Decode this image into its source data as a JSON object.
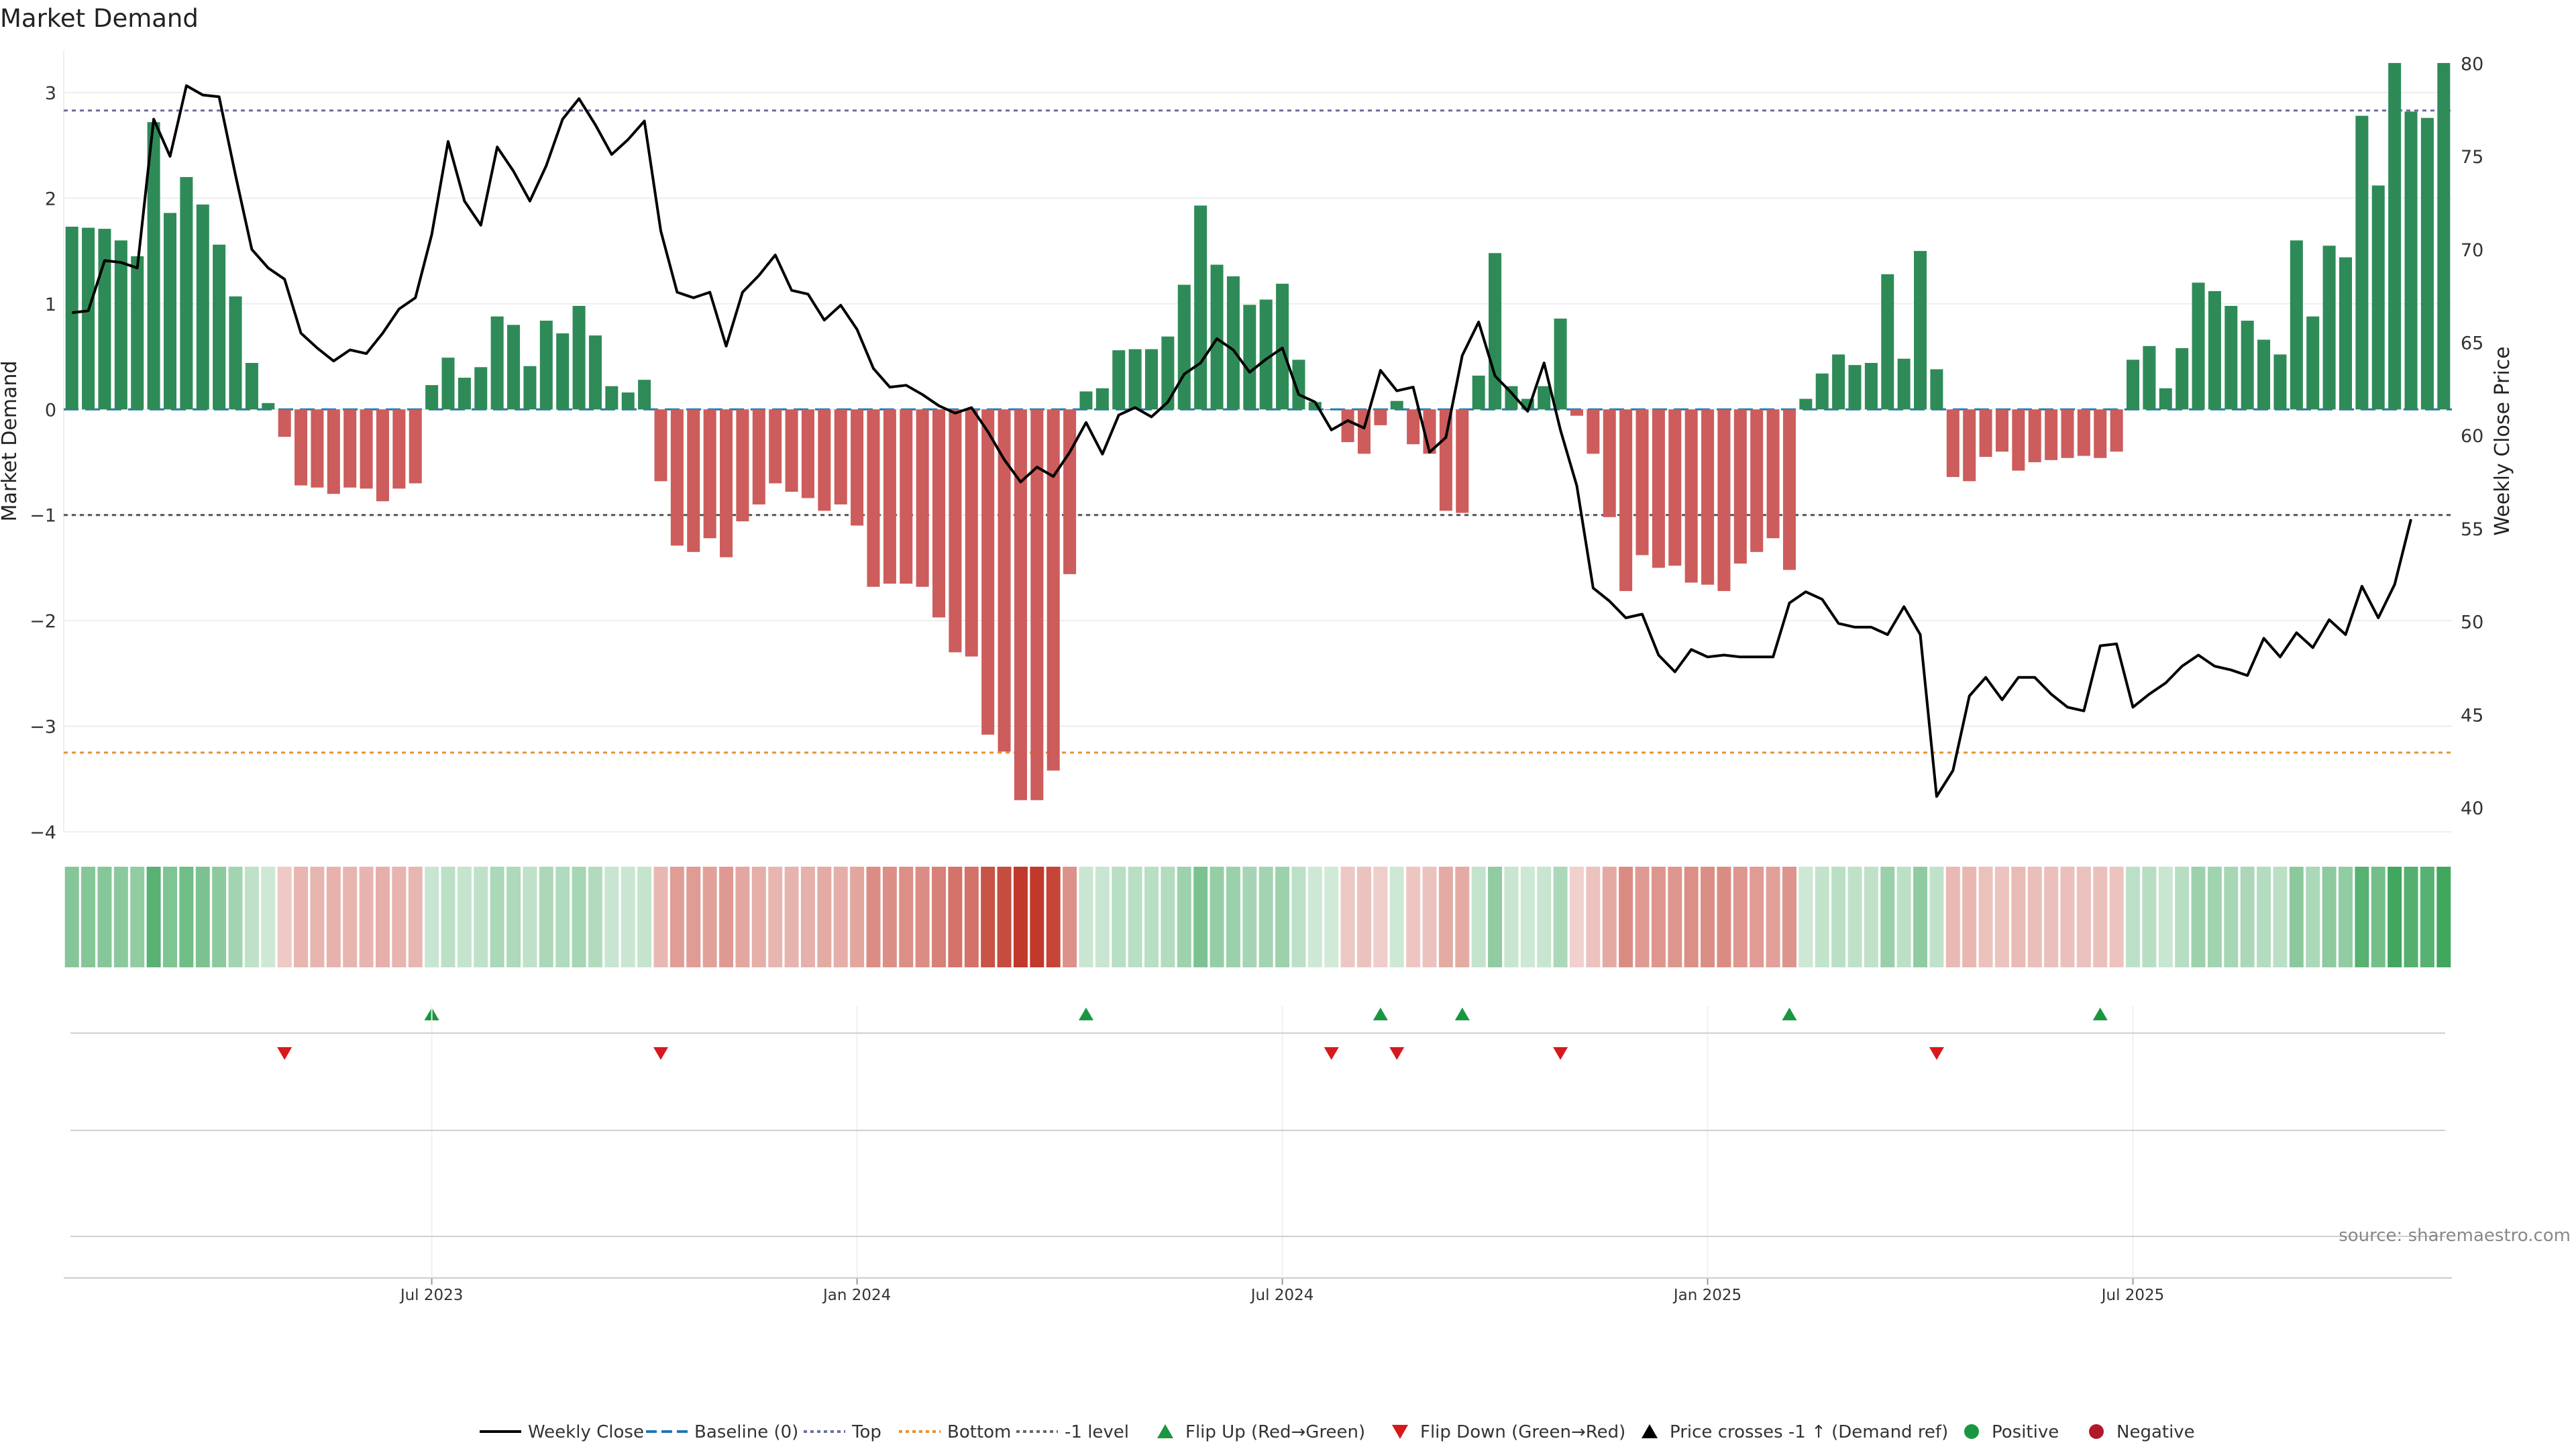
{
  "chart_data": {
    "type": "bar",
    "title": "Market Demand",
    "source": "source: sharemaestro.com",
    "ylabel_left": "Market Demand",
    "ylabel_right": "Weekly Close Price",
    "ylim_left": [
      -4,
      3.4
    ],
    "ylim_right": [
      38.7,
      80.7
    ],
    "yticks_left": [
      3,
      2,
      1,
      0,
      -1,
      -2,
      -3,
      -4
    ],
    "yticks_left_labels": [
      "3",
      "2",
      "1",
      "0",
      "−1",
      "−2",
      "−3",
      "−4"
    ],
    "yticks_right": [
      80,
      75,
      70,
      65,
      60,
      55,
      50,
      45,
      40
    ],
    "yticks_right_labels": [
      "80",
      "75",
      "70",
      "65",
      "60",
      "55",
      "50",
      "45",
      "40"
    ],
    "x_start_week_index": 0,
    "x_ticks": [
      {
        "label": "Jul 2023",
        "index": 22
      },
      {
        "label": "Jan 2024",
        "index": 48
      },
      {
        "label": "Jul 2024",
        "index": 74
      },
      {
        "label": "Jan 2025",
        "index": 100
      },
      {
        "label": "Jul 2025",
        "index": 126
      }
    ],
    "reference_lines": {
      "baseline": 0,
      "top": 2.83,
      "bottom": -3.25,
      "minus_one": -1
    },
    "demand": [
      1.73,
      1.72,
      1.71,
      1.6,
      1.45,
      2.72,
      1.86,
      2.2,
      1.94,
      1.56,
      1.07,
      0.44,
      0.06,
      -0.26,
      -0.72,
      -0.74,
      -0.8,
      -0.74,
      -0.75,
      -0.87,
      -0.75,
      -0.7,
      0.23,
      0.49,
      0.3,
      0.4,
      0.88,
      0.8,
      0.41,
      0.84,
      0.72,
      0.98,
      0.7,
      0.22,
      0.16,
      0.28,
      -0.68,
      -1.29,
      -1.35,
      -1.22,
      -1.4,
      -1.06,
      -0.9,
      -0.7,
      -0.78,
      -0.84,
      -0.96,
      -0.9,
      -1.1,
      -1.68,
      -1.65,
      -1.65,
      -1.68,
      -1.97,
      -2.3,
      -2.34,
      -3.08,
      -3.24,
      -3.7,
      -3.7,
      -3.42,
      -1.56,
      0.17,
      0.2,
      0.56,
      0.57,
      0.57,
      0.69,
      1.18,
      1.93,
      1.37,
      1.26,
      0.99,
      1.04,
      1.19,
      0.47,
      0.07,
      0,
      -0.31,
      -0.42,
      -0.15,
      0.08,
      -0.33,
      -0.42,
      -0.96,
      -0.98,
      0.32,
      1.48,
      0.22,
      0.1,
      0.22,
      0.86,
      -0.06,
      -0.42,
      -1.02,
      -1.72,
      -1.38,
      -1.5,
      -1.48,
      -1.64,
      -1.66,
      -1.72,
      -1.46,
      -1.35,
      -1.22,
      -1.52,
      0.1,
      0.34,
      0.52,
      0.42,
      0.44,
      1.28,
      0.48,
      1.5,
      0.38,
      -0.64,
      -0.68,
      -0.45,
      -0.4,
      -0.58,
      -0.5,
      -0.48,
      -0.46,
      -0.44,
      -0.46,
      -0.4,
      0.47,
      0.6,
      0.2,
      0.58,
      1.2,
      1.12,
      0.98,
      0.84,
      0.66,
      0.52,
      1.6,
      0.88,
      1.55,
      1.44,
      2.78,
      2.12,
      3.28,
      2.82,
      2.76,
      3.28
    ],
    "close": [
      66.6,
      66.7,
      69.4,
      69.3,
      69,
      77,
      75,
      78.8,
      78.3,
      78.2,
      74,
      70,
      69,
      68.4,
      65.5,
      64.7,
      64,
      64.6,
      64.4,
      65.5,
      66.8,
      67.4,
      70.8,
      75.8,
      72.6,
      71.3,
      75.5,
      74.2,
      72.6,
      74.5,
      77,
      78.1,
      76.7,
      75.1,
      75.9,
      76.9,
      71,
      67.7,
      67.4,
      67.7,
      64.8,
      67.7,
      68.6,
      69.7,
      67.8,
      67.6,
      66.2,
      67,
      65.7,
      63.6,
      62.6,
      62.7,
      62.2,
      61.6,
      61.2,
      61.5,
      60.2,
      58.7,
      57.5,
      58.3,
      57.8,
      59.1,
      60.7,
      59,
      61.1,
      61.5,
      61,
      61.8,
      63.3,
      63.9,
      65.2,
      64.6,
      63.4,
      64.1,
      64.7,
      62.2,
      61.8,
      60.3,
      60.8,
      60.4,
      63.5,
      62.4,
      62.6,
      59.1,
      59.9,
      64.3,
      66.1,
      63.2,
      62.3,
      61.3,
      63.9,
      60.3,
      57.3,
      51.8,
      51.1,
      50.2,
      50.4,
      48.2,
      47.3,
      48.5,
      48.1,
      48.2,
      48.1,
      48.1,
      48.1,
      51,
      51.6,
      51.2,
      49.9,
      49.7,
      49.7,
      49.3,
      50.8,
      49.3,
      40.6,
      42,
      46,
      47,
      45.8,
      47,
      47,
      46.1,
      45.4,
      45.2,
      48.7,
      48.8,
      45.4,
      46.1,
      46.7,
      47.6,
      48.2,
      47.6,
      47.4,
      47.1,
      49.1,
      48.1,
      49.4,
      48.6,
      50.1,
      49.3,
      51.9,
      50.2,
      52,
      55.5
    ],
    "flip_up_indices": [
      22,
      62,
      80,
      85,
      105,
      124
    ],
    "flip_down_indices": [
      13,
      36,
      77,
      81,
      91,
      114
    ],
    "legend": [
      {
        "label": "Weekly Close",
        "kind": "line-solid",
        "color": "#000000"
      },
      {
        "label": "Baseline (0)",
        "kind": "line-dash",
        "color": "#1f77b4"
      },
      {
        "label": "Top",
        "kind": "line-dot",
        "color": "#6b6fa3"
      },
      {
        "label": "Bottom",
        "kind": "line-dot",
        "color": "#e8912b"
      },
      {
        "label": "-1 level",
        "kind": "line-dot",
        "color": "#666666"
      },
      {
        "label": "Flip Up (Red→Green)",
        "kind": "tri-up",
        "color": "#1a9641"
      },
      {
        "label": "Flip Down (Green→Red)",
        "kind": "tri-down",
        "color": "#d7191c"
      },
      {
        "label": "Price crosses -1 ↑ (Demand ref)",
        "kind": "tri-up",
        "color": "#000000"
      },
      {
        "label": "Positive",
        "kind": "dot",
        "color": "#1a9641"
      },
      {
        "label": "Negative",
        "kind": "dot",
        "color": "#b2182b"
      }
    ],
    "colors": {
      "positive_bar": "#2e8b57",
      "negative_bar": "#cd5c5c",
      "close_line": "#000000",
      "baseline": "#1f77b4",
      "top_line": "#6b6fa3",
      "bottom_line": "#e8912b",
      "minus_one_line": "#555555",
      "flip_up": "#1a9641",
      "flip_down": "#d7191c",
      "strip_positive": "#2e9e4f",
      "strip_negative": "#c0392b"
    }
  }
}
